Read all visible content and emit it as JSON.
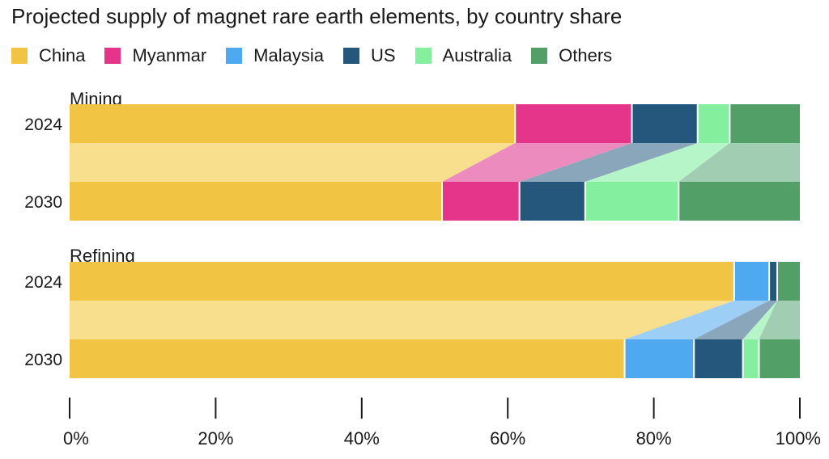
{
  "chart_data": {
    "type": "bar",
    "title": "Projected supply of magnet rare earth elements, by country share",
    "stacked": true,
    "legend_position": "top",
    "legend": [
      {
        "name": "China",
        "color": "#F2C443",
        "link_color": "#F7DF8D"
      },
      {
        "name": "Myanmar",
        "color": "#E5358A",
        "link_color": "#EC8BBE"
      },
      {
        "name": "Malaysia",
        "color": "#4FA9F0",
        "link_color": "#9CCEF6"
      },
      {
        "name": "US",
        "color": "#25577D",
        "link_color": "#89A6BB"
      },
      {
        "name": "Australia",
        "color": "#85EFA0",
        "link_color": "#B6F5C7"
      },
      {
        "name": "Others",
        "color": "#529F68",
        "link_color": "#A1CDB2"
      }
    ],
    "panels": [
      {
        "label": "Mining",
        "bars": [
          {
            "year": "2024",
            "values": {
              "China": 61,
              "Myanmar": 16,
              "Malaysia": 0,
              "US": 9,
              "Australia": 4.4,
              "Others": 9.6
            }
          },
          {
            "year": "2030",
            "values": {
              "China": 51,
              "Myanmar": 10.6,
              "Malaysia": 0,
              "US": 9,
              "Australia": 12.8,
              "Others": 16.6
            }
          }
        ]
      },
      {
        "label": "Refining",
        "bars": [
          {
            "year": "2024",
            "values": {
              "China": 91,
              "Myanmar": 0,
              "Malaysia": 4.8,
              "US": 1.1,
              "Australia": 0,
              "Others": 3.1
            }
          },
          {
            "year": "2030",
            "values": {
              "China": 76,
              "Myanmar": 0,
              "Malaysia": 9.5,
              "US": 6.7,
              "Australia": 2.2,
              "Others": 5.6
            }
          }
        ]
      }
    ],
    "x_ticks": [
      "0%",
      "20%",
      "40%",
      "60%",
      "80%",
      "100%"
    ],
    "xlim": [
      0,
      100
    ]
  }
}
